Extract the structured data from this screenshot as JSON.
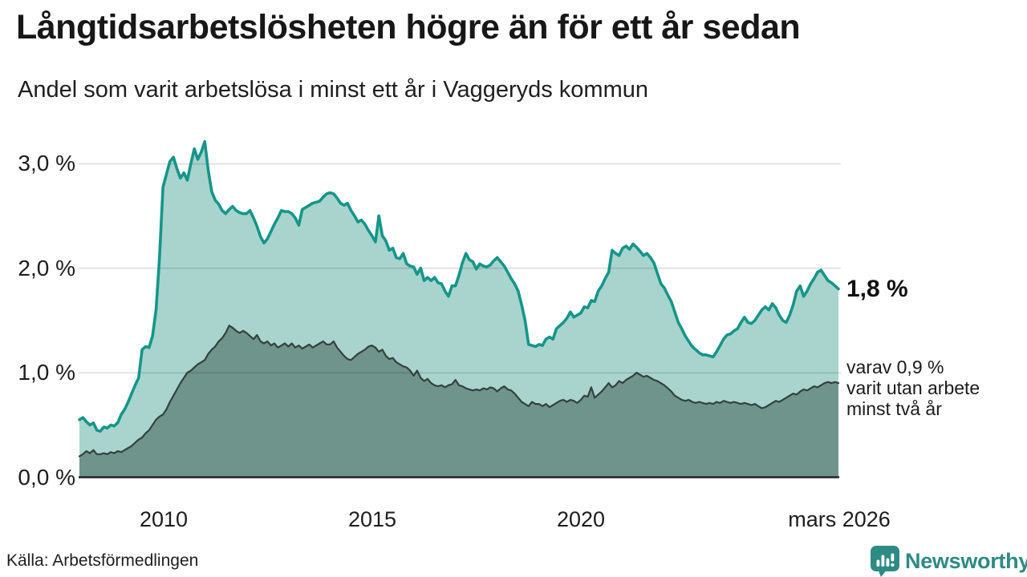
{
  "header": {
    "title": "Långtidsarbetslösheten högre än för ett år sedan",
    "subtitle": "Andel som varit arbetslösa i minst ett år i Vaggeryds kommun"
  },
  "chart_data": {
    "type": "area",
    "title": "Långtidsarbetslösheten högre än för ett år sedan",
    "subtitle": "Andel som varit arbetslösa i minst ett år i Vaggeryds kommun",
    "unit": "%",
    "x_start": "2008-01",
    "x_end": "2026-03",
    "x_interval": "monthly",
    "x_ticks": [
      "2010",
      "2015",
      "2020",
      "mars 2026"
    ],
    "y_ticks": [
      "3,0 %",
      "2,0 %",
      "1,0 %",
      "0,0 %"
    ],
    "y_tick_values": [
      3.0,
      2.0,
      1.0,
      0.0
    ],
    "ylim": [
      0,
      3.3
    ],
    "grid": "horizontal",
    "legend_position": "none",
    "series": [
      {
        "name": "Andel arbetslösa minst ett år",
        "line_color": "#14968a",
        "fill_color": "#a8d4cd",
        "end_value_label": "1,8 %",
        "values": [
          0.55,
          0.57,
          0.53,
          0.5,
          0.52,
          0.45,
          0.44,
          0.48,
          0.47,
          0.5,
          0.49,
          0.52,
          0.6,
          0.65,
          0.72,
          0.8,
          0.88,
          0.95,
          1.22,
          1.25,
          1.24,
          1.35,
          1.6,
          2.1,
          2.77,
          2.9,
          3.02,
          3.06,
          2.95,
          2.86,
          2.91,
          2.84,
          3.0,
          3.14,
          3.04,
          3.11,
          3.21,
          2.93,
          2.73,
          2.65,
          2.61,
          2.55,
          2.52,
          2.56,
          2.59,
          2.55,
          2.53,
          2.52,
          2.52,
          2.55,
          2.48,
          2.4,
          2.3,
          2.24,
          2.28,
          2.35,
          2.42,
          2.48,
          2.55,
          2.54,
          2.54,
          2.52,
          2.48,
          2.41,
          2.56,
          2.58,
          2.6,
          2.62,
          2.63,
          2.64,
          2.68,
          2.71,
          2.72,
          2.71,
          2.67,
          2.62,
          2.6,
          2.62,
          2.55,
          2.5,
          2.44,
          2.46,
          2.42,
          2.36,
          2.31,
          2.25,
          2.5,
          2.31,
          2.26,
          2.17,
          2.19,
          2.1,
          2.09,
          2.14,
          2.04,
          2.02,
          2.01,
          1.94,
          2.0,
          1.88,
          1.91,
          1.88,
          1.91,
          1.86,
          1.85,
          1.78,
          1.73,
          1.83,
          1.83,
          1.93,
          2.05,
          2.14,
          2.08,
          2.06,
          1.99,
          2.04,
          2.02,
          2.01,
          2.03,
          2.07,
          2.1,
          2.06,
          2.02,
          1.96,
          1.9,
          1.85,
          1.78,
          1.65,
          1.5,
          1.27,
          1.26,
          1.25,
          1.27,
          1.26,
          1.32,
          1.34,
          1.32,
          1.42,
          1.45,
          1.48,
          1.52,
          1.58,
          1.53,
          1.55,
          1.57,
          1.63,
          1.62,
          1.69,
          1.68,
          1.78,
          1.83,
          1.9,
          1.96,
          2.17,
          2.14,
          2.12,
          2.19,
          2.21,
          2.18,
          2.23,
          2.2,
          2.16,
          2.12,
          2.14,
          2.1,
          2.05,
          1.95,
          1.85,
          1.81,
          1.74,
          1.68,
          1.58,
          1.48,
          1.42,
          1.35,
          1.3,
          1.25,
          1.22,
          1.19,
          1.17,
          1.17,
          1.16,
          1.15,
          1.2,
          1.26,
          1.32,
          1.36,
          1.37,
          1.4,
          1.42,
          1.48,
          1.53,
          1.48,
          1.47,
          1.5,
          1.55,
          1.6,
          1.63,
          1.6,
          1.66,
          1.62,
          1.55,
          1.5,
          1.48,
          1.55,
          1.65,
          1.78,
          1.83,
          1.73,
          1.78,
          1.85,
          1.9,
          1.96,
          1.98,
          1.93,
          1.88,
          1.86,
          1.83,
          1.8
        ]
      },
      {
        "name": "Andel utan arbete minst två år",
        "line_color": "#33413d",
        "fill_color": "#6f948c",
        "end_value_label": "0,9 %",
        "values": [
          0.2,
          0.22,
          0.25,
          0.23,
          0.26,
          0.22,
          0.22,
          0.23,
          0.22,
          0.24,
          0.23,
          0.25,
          0.24,
          0.26,
          0.28,
          0.3,
          0.33,
          0.36,
          0.38,
          0.42,
          0.45,
          0.5,
          0.55,
          0.58,
          0.6,
          0.65,
          0.72,
          0.78,
          0.84,
          0.9,
          0.95,
          1.0,
          1.02,
          1.05,
          1.08,
          1.1,
          1.12,
          1.18,
          1.22,
          1.25,
          1.3,
          1.33,
          1.38,
          1.45,
          1.43,
          1.4,
          1.38,
          1.4,
          1.38,
          1.35,
          1.32,
          1.36,
          1.3,
          1.28,
          1.3,
          1.26,
          1.28,
          1.24,
          1.26,
          1.28,
          1.25,
          1.28,
          1.24,
          1.26,
          1.23,
          1.25,
          1.27,
          1.24,
          1.26,
          1.28,
          1.3,
          1.27,
          1.27,
          1.3,
          1.24,
          1.2,
          1.16,
          1.13,
          1.12,
          1.15,
          1.18,
          1.2,
          1.22,
          1.25,
          1.26,
          1.24,
          1.2,
          1.22,
          1.16,
          1.13,
          1.14,
          1.1,
          1.08,
          1.06,
          1.05,
          1.02,
          0.97,
          1.02,
          0.95,
          0.92,
          0.94,
          0.9,
          0.88,
          0.87,
          0.88,
          0.86,
          0.88,
          0.89,
          0.93,
          0.88,
          0.87,
          0.85,
          0.84,
          0.83,
          0.84,
          0.83,
          0.85,
          0.84,
          0.86,
          0.85,
          0.82,
          0.85,
          0.87,
          0.84,
          0.83,
          0.8,
          0.76,
          0.72,
          0.7,
          0.68,
          0.72,
          0.7,
          0.7,
          0.68,
          0.7,
          0.67,
          0.69,
          0.71,
          0.73,
          0.74,
          0.72,
          0.74,
          0.73,
          0.71,
          0.74,
          0.78,
          0.77,
          0.86,
          0.76,
          0.79,
          0.82,
          0.86,
          0.9,
          0.86,
          0.88,
          0.92,
          0.9,
          0.93,
          0.95,
          0.97,
          1.0,
          0.98,
          0.96,
          0.97,
          0.95,
          0.93,
          0.92,
          0.9,
          0.88,
          0.85,
          0.82,
          0.78,
          0.76,
          0.74,
          0.73,
          0.74,
          0.72,
          0.71,
          0.72,
          0.71,
          0.7,
          0.71,
          0.7,
          0.72,
          0.71,
          0.73,
          0.72,
          0.71,
          0.72,
          0.71,
          0.7,
          0.71,
          0.7,
          0.69,
          0.7,
          0.68,
          0.66,
          0.67,
          0.69,
          0.71,
          0.73,
          0.72,
          0.74,
          0.76,
          0.78,
          0.8,
          0.79,
          0.82,
          0.84,
          0.83,
          0.85,
          0.87,
          0.86,
          0.88,
          0.9,
          0.91,
          0.9,
          0.91,
          0.9
        ]
      }
    ],
    "annotations": {
      "latest_value": "1,8 %",
      "secondary_lines": [
        "varav 0,9 %",
        "varit utan arbete",
        "minst två år"
      ]
    }
  },
  "footer": {
    "source": "Källa: Arbetsförmedlingen",
    "brand": "Newsworthy"
  },
  "colors": {
    "accent_teal": "#14968a",
    "fill_light": "#a8d4cd",
    "fill_dark": "#6f948c",
    "dark_line": "#33413d",
    "brand_teal": "#2e8b84",
    "axis": "#222222",
    "text": "#1b1b1b"
  }
}
